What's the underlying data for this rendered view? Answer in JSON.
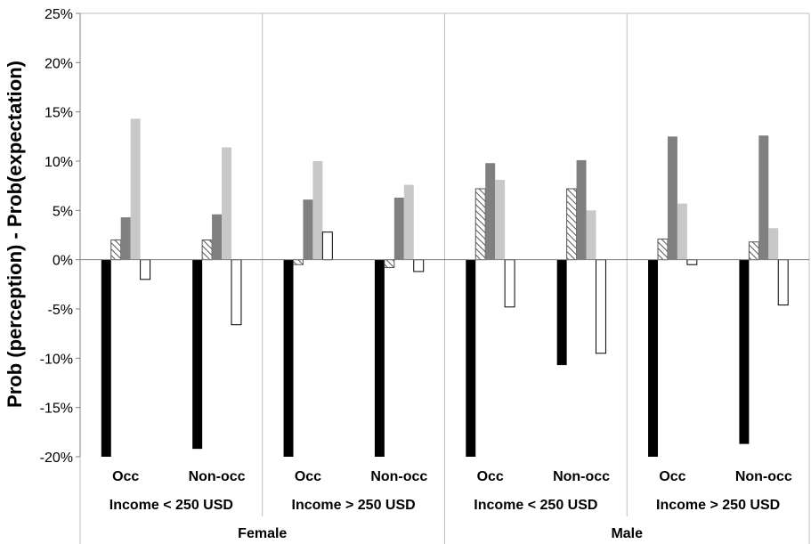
{
  "chart_data": {
    "type": "bar",
    "ylabel": "Prob (perception) - Prob(expectation)",
    "ylim": [
      -20,
      25
    ],
    "yticks": [
      "25%",
      "20%",
      "15%",
      "10%",
      "5%",
      "0%",
      "-5%",
      "-10%",
      "-15%",
      "-20%"
    ],
    "grid": "vertical separators only",
    "legend": "none",
    "categories": [
      "Occ",
      "Non-occ",
      "Occ",
      "Non-occ",
      "Occ",
      "Non-occ",
      "Occ",
      "Non-occ"
    ],
    "income_groups": [
      "Income < 250 USD",
      "Income > 250 USD",
      "Income < 250 USD",
      "Income > 250 USD"
    ],
    "gender_groups": [
      "Female",
      "Male"
    ],
    "series": [
      {
        "values": [
          -20.0,
          -19.2,
          -20.0,
          -20.0,
          -20.0,
          -10.7,
          -20.0,
          -18.7
        ],
        "color": "#000000",
        "pattern": "solid"
      },
      {
        "values": [
          2.0,
          2.0,
          -0.5,
          -0.8,
          7.2,
          7.2,
          2.1,
          1.8
        ],
        "color": "#7f7f7f",
        "pattern": "hatched"
      },
      {
        "values": [
          4.3,
          4.6,
          6.1,
          6.3,
          9.8,
          10.1,
          12.5,
          12.6
        ],
        "color": "#808080",
        "pattern": "solid"
      },
      {
        "values": [
          14.3,
          11.4,
          10.0,
          7.6,
          8.1,
          5.0,
          5.7,
          3.2
        ],
        "color": "#c8c8c8",
        "pattern": "solid"
      },
      {
        "values": [
          -2.0,
          -6.6,
          2.8,
          -1.2,
          -4.8,
          -9.5,
          -0.5,
          -4.6
        ],
        "color": "#ffffff",
        "pattern": "outline"
      }
    ]
  }
}
